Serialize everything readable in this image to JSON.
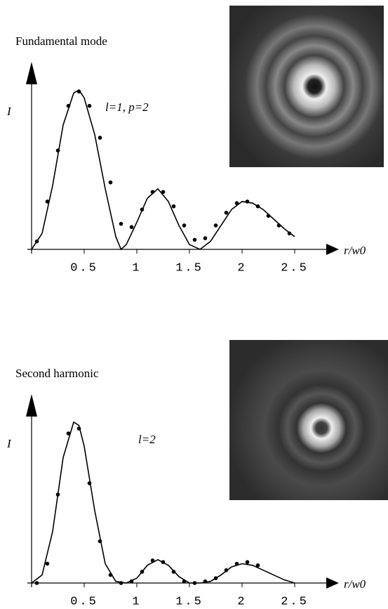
{
  "chart_data": [
    {
      "type": "line",
      "title": "Fundamental mode",
      "annotation": "l=1, p=2",
      "y_label": "I",
      "x_label": "r/w0",
      "xlim": [
        0,
        2.8
      ],
      "ylim": [
        0,
        1
      ],
      "xticks": [
        0.5,
        1,
        1.5,
        2,
        2.5
      ],
      "series": [
        {
          "type": "line",
          "color": "#000000",
          "x": [
            0,
            0.1,
            0.2,
            0.3,
            0.4,
            0.45,
            0.5,
            0.6,
            0.7,
            0.8,
            0.85,
            0.9,
            1.0,
            1.1,
            1.2,
            1.3,
            1.4,
            1.5,
            1.6,
            1.7,
            1.8,
            1.9,
            2.0,
            2.1,
            2.2,
            2.3,
            2.4,
            2.5
          ],
          "values": [
            0,
            0.1,
            0.4,
            0.78,
            0.98,
            1.0,
            0.95,
            0.72,
            0.38,
            0.08,
            0,
            0.03,
            0.17,
            0.32,
            0.38,
            0.3,
            0.15,
            0.03,
            0,
            0.05,
            0.15,
            0.25,
            0.3,
            0.29,
            0.25,
            0.19,
            0.13,
            0.08
          ]
        },
        {
          "type": "scatter",
          "color": "#000000",
          "x": [
            0.05,
            0.15,
            0.25,
            0.35,
            0.45,
            0.55,
            0.65,
            0.75,
            0.85,
            0.95,
            1.05,
            1.15,
            1.25,
            1.35,
            1.45,
            1.55,
            1.65,
            1.75,
            1.85,
            1.95,
            2.05,
            2.15,
            2.25,
            2.35,
            2.45
          ],
          "values": [
            0.05,
            0.3,
            0.62,
            0.9,
            0.99,
            0.9,
            0.7,
            0.42,
            0.16,
            0.14,
            0.25,
            0.36,
            0.36,
            0.27,
            0.15,
            0.06,
            0.07,
            0.15,
            0.23,
            0.29,
            0.3,
            0.27,
            0.21,
            0.15,
            0.1
          ]
        }
      ]
    },
    {
      "type": "line",
      "title": "Second harmonic",
      "annotation": "l=2",
      "y_label": "I",
      "x_label": "r/w0",
      "xlim": [
        0,
        2.8
      ],
      "ylim": [
        0,
        1
      ],
      "xticks": [
        0.5,
        1,
        1.5,
        2,
        2.5
      ],
      "series": [
        {
          "type": "line",
          "color": "#000000",
          "x": [
            0,
            0.1,
            0.2,
            0.3,
            0.4,
            0.45,
            0.5,
            0.6,
            0.7,
            0.8,
            0.9,
            1.0,
            1.1,
            1.2,
            1.3,
            1.4,
            1.5,
            1.6,
            1.7,
            1.8,
            1.9,
            2.0,
            2.1,
            2.2,
            2.3,
            2.4,
            2.5
          ],
          "values": [
            0,
            0.05,
            0.32,
            0.78,
            1.0,
            0.98,
            0.85,
            0.45,
            0.12,
            0.01,
            0,
            0.03,
            0.11,
            0.145,
            0.11,
            0.04,
            0,
            0,
            0.01,
            0.05,
            0.1,
            0.12,
            0.11,
            0.08,
            0.05,
            0.02,
            0
          ]
        },
        {
          "type": "scatter",
          "color": "#000000",
          "x": [
            0.05,
            0.15,
            0.25,
            0.35,
            0.45,
            0.55,
            0.65,
            0.75,
            0.85,
            0.95,
            1.05,
            1.15,
            1.25,
            1.35,
            1.45,
            1.55,
            1.65,
            1.75,
            1.85,
            1.95,
            2.05,
            2.15
          ],
          "values": [
            0,
            0.12,
            0.55,
            0.93,
            0.96,
            0.62,
            0.26,
            0.05,
            0,
            0.01,
            0.07,
            0.14,
            0.13,
            0.07,
            0.01,
            0,
            0.01,
            0.03,
            0.08,
            0.12,
            0.13,
            0.11
          ]
        }
      ]
    }
  ]
}
